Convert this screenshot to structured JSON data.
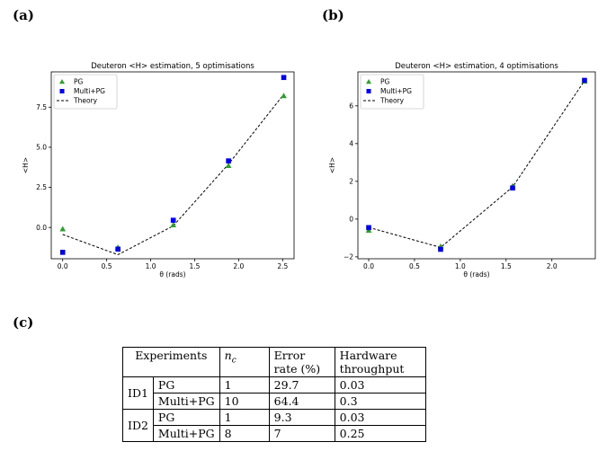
{
  "labels": {
    "a": "(a)",
    "b": "(b)",
    "c": "(c)"
  },
  "chart_data": [
    {
      "type": "scatter",
      "title": "Deuteron <H> estimation, 5 optimisations",
      "xlabel": "θ (rads)",
      "ylabel": "<H>",
      "xlim": [
        -0.13,
        2.63
      ],
      "ylim": [
        -1.95,
        9.7
      ],
      "xticks": [
        0.0,
        0.5,
        1.0,
        1.5,
        2.0,
        2.5
      ],
      "xtick_labels": [
        "0.0",
        "0.5",
        "1.0",
        "1.5",
        "2.0",
        "2.5"
      ],
      "yticks": [
        0.0,
        2.5,
        5.0,
        7.5
      ],
      "ytick_labels": [
        "0.0",
        "2.5",
        "5.0",
        "7.5"
      ],
      "legend_position": "top-left",
      "legend": [
        "PG",
        "Multi+PG",
        "Theory"
      ],
      "series": [
        {
          "name": "PG",
          "marker": "triangle",
          "color": "#2ca02c",
          "x": [
            0.0,
            0.628,
            1.257,
            1.885,
            2.513
          ],
          "y": [
            -0.1,
            -1.25,
            0.15,
            3.85,
            8.2
          ]
        },
        {
          "name": "Multi+PG",
          "marker": "square",
          "color": "#0000ee",
          "x": [
            0.0,
            0.628,
            1.257,
            1.885,
            2.513
          ],
          "y": [
            -1.55,
            -1.35,
            0.45,
            4.15,
            9.35
          ]
        },
        {
          "name": "Theory",
          "line": "dashed",
          "color": "#000000",
          "x": [
            0.0,
            0.628,
            1.257,
            1.885,
            2.513
          ],
          "y": [
            -0.44,
            -1.7,
            0.1,
            3.95,
            8.3
          ]
        }
      ]
    },
    {
      "type": "scatter",
      "title": "Deuteron <H> estimation, 4 optimisations",
      "xlabel": "θ (rads)",
      "ylabel": "<H>",
      "xlim": [
        -0.118,
        2.474
      ],
      "ylim": [
        -2.1,
        7.8
      ],
      "xticks": [
        0.0,
        0.5,
        1.0,
        1.5,
        2.0
      ],
      "xtick_labels": [
        "0.0",
        "0.5",
        "1.0",
        "1.5",
        "2.0"
      ],
      "yticks": [
        -2,
        0,
        2,
        4,
        6
      ],
      "ytick_labels": [
        "−2",
        "0",
        "2",
        "4",
        "6"
      ],
      "legend_position": "top-left",
      "legend": [
        "PG",
        "Multi+PG",
        "Theory"
      ],
      "series": [
        {
          "name": "PG",
          "marker": "triangle",
          "color": "#2ca02c",
          "x": [
            0.0,
            0.785,
            1.571,
            2.356
          ],
          "y": [
            -0.6,
            -1.45,
            1.75,
            7.3
          ]
        },
        {
          "name": "Multi+PG",
          "marker": "square",
          "color": "#0000ee",
          "x": [
            0.0,
            0.785,
            1.571,
            2.356
          ],
          "y": [
            -0.45,
            -1.6,
            1.65,
            7.35
          ]
        },
        {
          "name": "Theory",
          "line": "dashed",
          "color": "#000000",
          "x": [
            0.0,
            0.785,
            1.571,
            2.356
          ],
          "y": [
            -0.44,
            -1.5,
            1.7,
            7.33
          ]
        }
      ]
    },
    {
      "type": "table",
      "headers": {
        "experiments": "Experiments",
        "nc_base": "n",
        "nc_sub": "c",
        "error_line1": "Error",
        "error_line2": "rate (%)",
        "hw_line1": "Hardware",
        "hw_line2": "throughput"
      },
      "rows": [
        {
          "group": "ID1",
          "method": "PG",
          "nc": "1",
          "error": "29.7",
          "throughput": "0.03"
        },
        {
          "group": "ID1",
          "method": "Multi+PG",
          "nc": "10",
          "error": "64.4",
          "throughput": "0.3"
        },
        {
          "group": "ID2",
          "method": "PG",
          "nc": "1",
          "error": "9.3",
          "throughput": "0.03"
        },
        {
          "group": "ID2",
          "method": "Multi+PG",
          "nc": "8",
          "error": "7",
          "throughput": "0.25"
        }
      ]
    }
  ]
}
